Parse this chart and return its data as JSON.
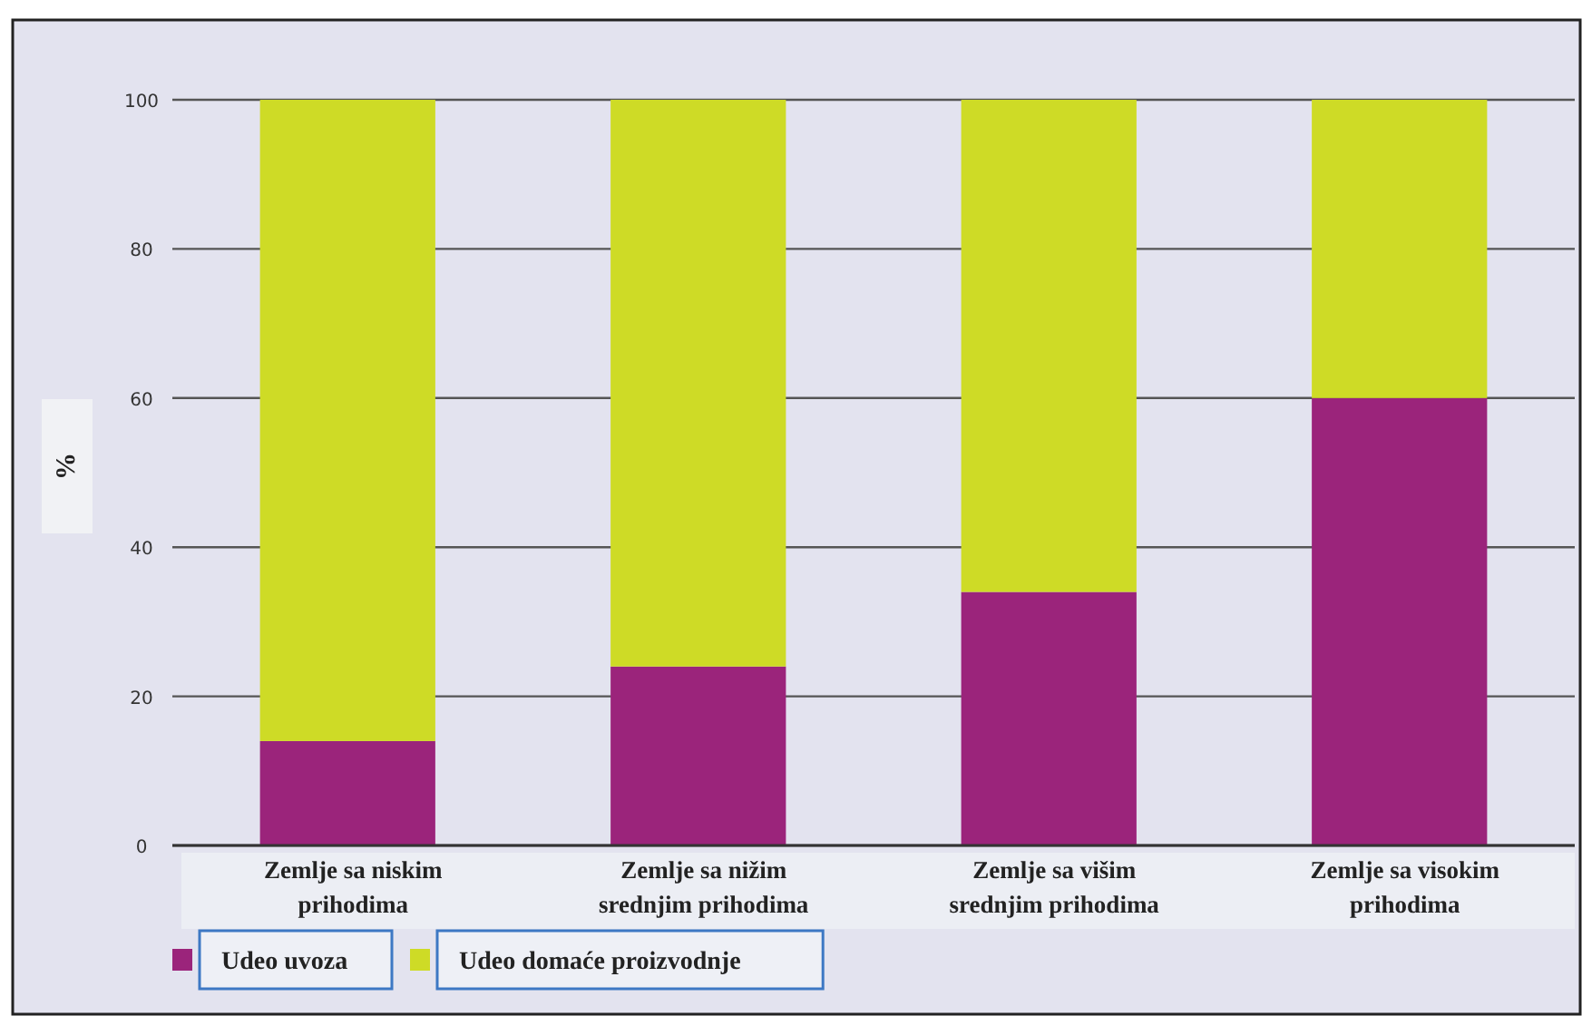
{
  "chart_data": {
    "type": "bar",
    "stacked": true,
    "ylabel": "%",
    "categories": [
      "Zemlje sa niskim prihodima",
      "Zemlje sa nižim srednjim prihodima",
      "Zemlje sa višim srednjim prihodima",
      "Zemlje sa visokim prihodima"
    ],
    "series": [
      {
        "name": "Udeo uvoza",
        "color": "#9b247b",
        "values": [
          14,
          24,
          34,
          60
        ]
      },
      {
        "name": "Udeo domaće proizvodnje",
        "color": "#cedb26",
        "values": [
          86,
          76,
          66,
          40
        ]
      }
    ],
    "ylim": [
      0,
      100
    ],
    "yticks": [
      0,
      20,
      40,
      60,
      80,
      100
    ],
    "grid": "y",
    "legend": "bottom left"
  }
}
